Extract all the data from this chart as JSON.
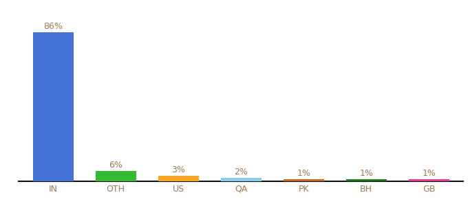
{
  "categories": [
    "IN",
    "OTH",
    "US",
    "QA",
    "PK",
    "BH",
    "GB"
  ],
  "values": [
    86,
    6,
    3,
    2,
    1,
    1,
    1
  ],
  "bar_colors": [
    "#4472d6",
    "#33bb33",
    "#f5a623",
    "#87ceeb",
    "#c86820",
    "#1a7a1a",
    "#e8388a"
  ],
  "labels": [
    "86%",
    "6%",
    "3%",
    "2%",
    "1%",
    "1%",
    "1%"
  ],
  "label_color": "#a07850",
  "tick_color": "#a07850",
  "label_fontsize": 9,
  "tick_fontsize": 9,
  "background_color": "#ffffff",
  "ylim": [
    0,
    95
  ],
  "bar_width": 0.65
}
